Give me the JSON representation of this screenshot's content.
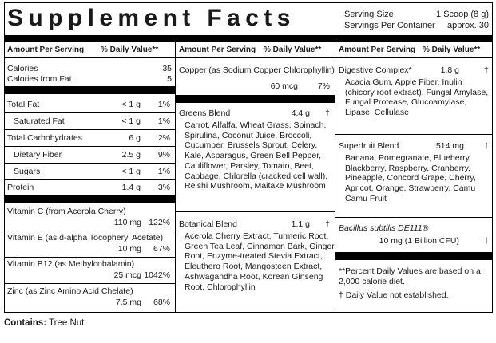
{
  "header": {
    "title": "Supplement Facts",
    "serving_size_label": "Serving Size",
    "serving_size_value": "1 Scoop (8 g)",
    "servings_label": "Servings Per Container",
    "servings_value": "approx. 30"
  },
  "col1": {
    "head_amount": "Amount Per Serving",
    "head_dv": "% Daily Value**",
    "calories": {
      "label": "Calories",
      "value": "35"
    },
    "calories_fat": {
      "label": "Calories from Fat",
      "value": "5"
    },
    "rows": [
      {
        "label": "Total Fat",
        "amount": "< 1 g",
        "dv": "1%"
      },
      {
        "label": "Saturated Fat",
        "amount": "< 1 g",
        "dv": "1%"
      },
      {
        "label": "Total Carbohydrates",
        "amount": "6 g",
        "dv": "2%"
      },
      {
        "label": "Dietary Fiber",
        "amount": "2.5 g",
        "dv": "9%"
      },
      {
        "label": "Sugars",
        "amount": "< 1 g",
        "dv": "1%"
      },
      {
        "label": "Protein",
        "amount": "1.4 g",
        "dv": "3%"
      }
    ],
    "vitamins": [
      {
        "label": "Vitamin C (from Acerola Cherry)",
        "amount": "110 mg",
        "dv": "122%"
      },
      {
        "label": "Vitamin E (as d-alpha Tocopheryl Acetate)",
        "amount": "10 mg",
        "dv": "67%"
      },
      {
        "label": "Vitamin B12 (as Methylcobalamin)",
        "amount": "25 mcg",
        "dv": "1042%"
      },
      {
        "label": "Zinc (as Zinc Amino Acid Chelate)",
        "amount": "7.5 mg",
        "dv": "68%"
      }
    ]
  },
  "col2": {
    "head_amount": "Amount Per Serving",
    "head_dv": "% Daily Value**",
    "copper": {
      "label": "Copper (as Sodium Copper Chlorophyllin)",
      "amount": "60 mcg",
      "dv": "7%"
    },
    "greens": {
      "label": "Greens Blend",
      "amount": "4.4 g",
      "dv": "†",
      "lines": [
        "Carrot, Alfalfa, Wheat Grass, Spinach,",
        "Spirulina, Coconut Juice, Broccoli,",
        "Cucumber, Brussels Sprout, Celery,",
        "Kale, Asparagus, Green Bell Pepper,",
        "Cauliflower, Parsley, Tomato, Beet,",
        "Cabbage, Chlorella (cracked cell wall),",
        "Reishi Mushroom, Maitake Mushroom"
      ]
    },
    "botanical": {
      "label": "Botanical Blend",
      "amount": "1.1 g",
      "dv": "†",
      "lines": [
        "Acerola Cherry Extract, Turmeric Root,",
        "Green Tea Leaf, Cinnamon Bark, Ginger",
        "Root, Enzyme-treated Stevia Extract,",
        "Eleuthero Root, Mangosteen Extract,",
        "Ashwagandha Root, Korean Ginseng",
        "Root, Chlorophyllin"
      ]
    }
  },
  "col3": {
    "head_amount": "Amount Per Serving",
    "head_dv": "% Daily Value**",
    "digestive": {
      "label": "Digestive Complex*",
      "amount": "1.8 g",
      "dv": "†",
      "lines": [
        "Acacia Gum, Apple Fiber, Inulin",
        "(chicory root extract), Fungal Amylase,",
        "Fungal Protease, Glucoamylase,",
        "Lipase, Cellulase"
      ]
    },
    "superfruit": {
      "label": "Superfruit Blend",
      "amount": "514 mg",
      "dv": "†",
      "lines": [
        "Banana, Pomegranate, Blueberry,",
        "Blackberry, Raspberry, Cranberry,",
        "Pineapple, Concord Grape, Cherry,",
        "Apricot, Orange, Strawberry, Camu",
        "Camu Fruit"
      ]
    },
    "bacillus": {
      "label": "Bacillus subtilis DE111®",
      "amount": "10 mg (1 Billion CFU)",
      "dv": "†"
    },
    "footnote1": [
      "**Percent Daily Values are based on a",
      "2,000 calorie diet."
    ],
    "footnote2": "† Daily Value not established."
  },
  "contains": {
    "label": "Contains:",
    "value": "Tree Nut"
  }
}
